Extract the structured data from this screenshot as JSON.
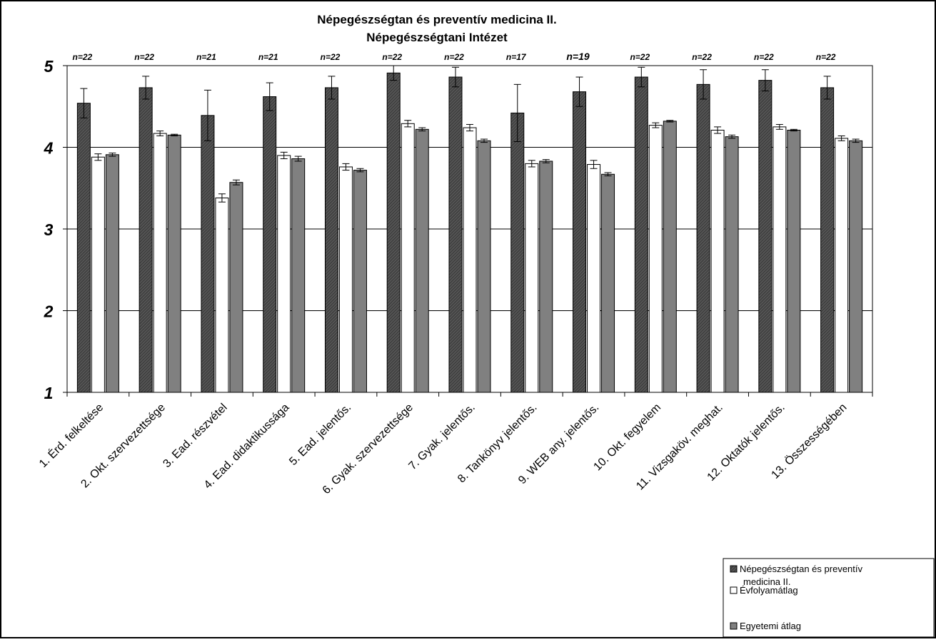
{
  "chart_data": {
    "type": "bar",
    "title": [
      "Népegészségtan és preventív medicina II.",
      "Népegészségtani Intézet"
    ],
    "categories": [
      "1. Érd. felkeltése",
      "2. Okt. szervezettsége",
      "3. Ead. részvétel",
      "4. Ead. didaktikussága",
      "5. Ead. jelentős.",
      "6. Gyak. szervezettsége",
      "7. Gyak. jelentős.",
      "8. Tankönyv jelentős.",
      "9. WEB any. jelentős.",
      "10. Okt. fegyelem",
      "11. Vizsgaköv. meghat.",
      "12. Oktatók jelentős.",
      "13. Összességében"
    ],
    "n_labels": [
      "n=22",
      "n=22",
      "n=21",
      "n=21",
      "n=22",
      "n=22",
      "n=22",
      "n=17",
      "n=19",
      "n=22",
      "n=22",
      "n=22",
      "n=22"
    ],
    "series": [
      {
        "name": "Népegészségtan és preventív medicina II.",
        "color": "#404040",
        "pattern": "hatched",
        "values": [
          4.54,
          4.73,
          4.39,
          4.62,
          4.73,
          4.91,
          4.86,
          4.42,
          4.68,
          4.86,
          4.77,
          4.82,
          4.73
        ],
        "err": [
          0.18,
          0.14,
          0.31,
          0.17,
          0.14,
          0.09,
          0.12,
          0.35,
          0.18,
          0.12,
          0.18,
          0.13,
          0.14
        ]
      },
      {
        "name": "Évfolyamátlag",
        "color": "#ffffff",
        "pattern": "solid",
        "values": [
          3.88,
          4.17,
          3.38,
          3.9,
          3.76,
          4.29,
          4.24,
          3.8,
          3.79,
          4.27,
          4.21,
          4.25,
          4.11
        ],
        "err": [
          0.04,
          0.03,
          0.05,
          0.04,
          0.04,
          0.04,
          0.04,
          0.04,
          0.05,
          0.03,
          0.04,
          0.03,
          0.03
        ]
      },
      {
        "name": "Egyetemi átlag",
        "color": "#808080",
        "pattern": "solid",
        "values": [
          3.91,
          4.15,
          3.57,
          3.86,
          3.72,
          4.22,
          4.08,
          3.83,
          3.67,
          4.32,
          4.13,
          4.21,
          4.08
        ],
        "err": [
          0.02,
          0.01,
          0.03,
          0.03,
          0.02,
          0.02,
          0.02,
          0.02,
          0.02,
          0.01,
          0.02,
          0.01,
          0.02
        ]
      }
    ],
    "ylim": [
      1,
      5
    ],
    "yticks": [
      "1",
      "2",
      "3",
      "4",
      "5"
    ],
    "grid": true,
    "legend_position": "bottom-right"
  }
}
